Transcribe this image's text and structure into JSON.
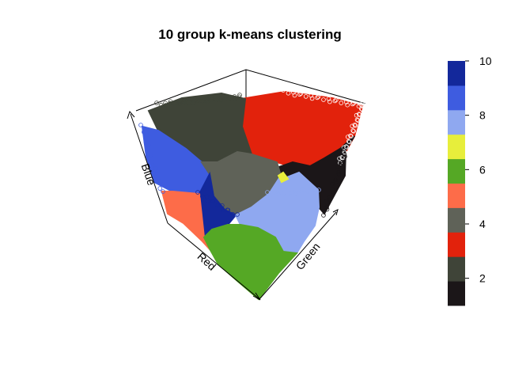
{
  "chart_data": {
    "type": "scatter",
    "projection": "3d",
    "title": "10 group k-means clustering",
    "axes": {
      "x_label": "Red",
      "y_label": "Green",
      "z_label": "Blue"
    },
    "colorbar": {
      "range": [
        1,
        10
      ],
      "tick_labels": [
        "2",
        "4",
        "6",
        "8",
        "10"
      ],
      "tick_values": [
        2,
        4,
        6,
        8,
        10
      ]
    },
    "clusters": [
      {
        "id": 1,
        "color": "#1b1618"
      },
      {
        "id": 2,
        "color": "#3f4438"
      },
      {
        "id": 3,
        "color": "#e2220c"
      },
      {
        "id": 4,
        "color": "#5f6258"
      },
      {
        "id": 5,
        "color": "#fd6c49"
      },
      {
        "id": 6,
        "color": "#55a825"
      },
      {
        "id": 7,
        "color": "#e7ee3b"
      },
      {
        "id": 8,
        "color": "#8fa8f0"
      },
      {
        "id": 9,
        "color": "#3e5ce0"
      },
      {
        "id": 10,
        "color": "#13289b"
      }
    ]
  }
}
